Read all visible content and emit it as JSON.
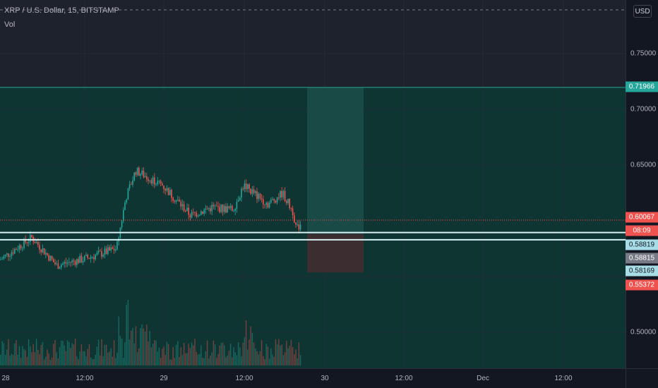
{
  "header": {
    "title": "XRP / U.S. Dollar, 15, BITSTAMP",
    "indicator": "Vol",
    "currency_button": "USD"
  },
  "colors": {
    "background": "#131722",
    "teal_zone": "#0f3532",
    "profit_zone": "#1a4a45",
    "loss_zone": "#3c2d31",
    "bull": "#26a69a",
    "bear": "#ef5350",
    "level_line": "#d7f1f5",
    "target_line": "#26a69a"
  },
  "chart_data": {
    "type": "candlestick",
    "symbol": "XRP / U.S. Dollar",
    "interval": "15",
    "exchange": "BITSTAMP",
    "y_axis": {
      "ticks": [
        "0.75000",
        "0.70000",
        "0.65000",
        "0.50000"
      ],
      "tick_values": [
        0.75,
        0.7,
        0.65,
        0.5
      ]
    },
    "x_axis": {
      "ticks": [
        "28",
        "12:00",
        "29",
        "12:00",
        "30",
        "12:00",
        "Dec",
        "12:00"
      ]
    },
    "price_tags": [
      {
        "label": "0.71966",
        "value": 0.71966,
        "bg": "#26a69a",
        "fg": "#ffffff"
      },
      {
        "label": "0.60067",
        "value": 0.60067,
        "bg": "#ef5350",
        "fg": "#ffffff"
      },
      {
        "label": "08:09",
        "value": 0.5893,
        "bg": "#ef5350",
        "fg": "#ffffff"
      },
      {
        "label": "0.58819",
        "value": 0.58819,
        "bg": "#a7dde6",
        "fg": "#131722"
      },
      {
        "label": "0.58815",
        "value": 0.58815,
        "bg": "#787b86",
        "fg": "#ffffff"
      },
      {
        "label": "0.58169",
        "value": 0.58169,
        "bg": "#a7dde6",
        "fg": "#131722"
      },
      {
        "label": "0.55372",
        "value": 0.55372,
        "bg": "#ef5350",
        "fg": "#ffffff"
      }
    ],
    "levels": {
      "target": 0.71966,
      "entry_upper": 0.58819,
      "entry_lower": 0.58169,
      "stop": 0.55372,
      "last_price": 0.60067
    },
    "series": [
      {
        "name": "price",
        "x": [
          "28 00:00",
          "28 06:00",
          "28 12:00",
          "28 18:00",
          "29 00:00",
          "29 06:00",
          "29 12:00",
          "29 18:00"
        ],
        "values": [
          0.565,
          0.585,
          0.566,
          0.575,
          0.64,
          0.618,
          0.63,
          0.6
        ]
      }
    ],
    "grid": true,
    "legend": "top-left"
  }
}
